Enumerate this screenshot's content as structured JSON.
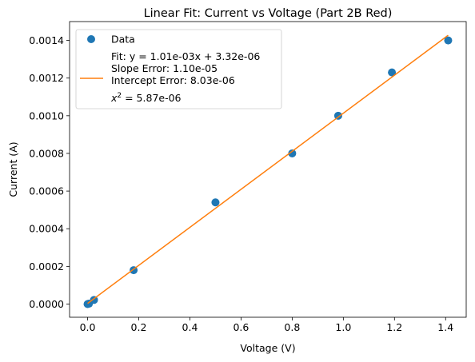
{
  "chart_data": {
    "type": "scatter",
    "title": "Linear Fit: Current vs Voltage (Part 2B Red)",
    "xlabel": "Voltage (V)",
    "ylabel": "Current (A)",
    "xlim": [
      -0.0705,
      1.4805
    ],
    "ylim": [
      -7e-05,
      0.0015
    ],
    "x_ticks": [
      0.0,
      0.2,
      0.4,
      0.6,
      0.8,
      1.0,
      1.2,
      1.4
    ],
    "x_tick_labels": [
      "0.0",
      "0.2",
      "0.4",
      "0.6",
      "0.8",
      "1.0",
      "1.2",
      "1.4"
    ],
    "y_ticks": [
      0,
      0.0002,
      0.0004,
      0.0006,
      0.0008,
      0.001,
      0.0012,
      0.0014
    ],
    "y_tick_labels": [
      "0.0000",
      "0.0002",
      "0.0004",
      "0.0006",
      "0.0008",
      "0.0010",
      "0.0012",
      "0.0014"
    ],
    "grid": false,
    "legend_position": "upper-left",
    "series": [
      {
        "name": "Data",
        "kind": "scatter",
        "color": "#1f77b4",
        "x": [
          0.0,
          0.005,
          0.025,
          0.18,
          0.5,
          0.8,
          0.98,
          1.19,
          1.41
        ],
        "y": [
          0.0,
          2e-06,
          2.2e-05,
          0.00018,
          0.00054,
          0.0008,
          0.001,
          0.00123,
          0.0014
        ]
      },
      {
        "name": "Fit: y = 1.01e-03x + 3.32e-06",
        "kind": "line",
        "color": "#ff7f0e",
        "x": [
          0.0,
          1.41
        ],
        "y": [
          3.32e-06,
          0.00142742
        ]
      }
    ],
    "legend_extra": [
      "Slope Error: 1.10e-05",
      "Intercept Error: 8.03e-06"
    ],
    "chi2_label_prefix": "x",
    "chi2_label_sup": "2",
    "chi2_label_value": " = 5.87e-06"
  }
}
